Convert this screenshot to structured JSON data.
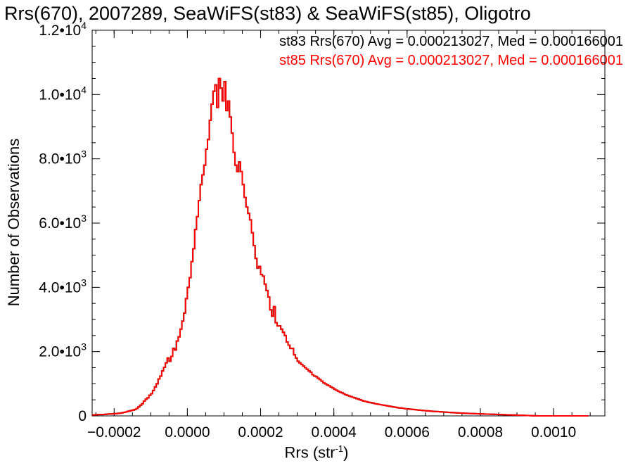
{
  "chart_data": {
    "type": "histogram-step",
    "title": "Rrs(670), 2007289, SeaWiFS(st83) & SeaWiFS(st85), Oligotro",
    "xlabel": "Rrs (str",
    "xlabel_sup": "-1",
    "xlabel_close": ")",
    "ylabel": "Number of Observations",
    "xlim": [
      -0.00026,
      0.00114
    ],
    "ylim": [
      0,
      12000
    ],
    "x_ticks": [
      -0.0002,
      0.0,
      0.0002,
      0.0004,
      0.0006,
      0.0008,
      0.001
    ],
    "x_tick_labels": [
      "−0.0002",
      "0.0000",
      "0.0002",
      "0.0004",
      "0.0006",
      "0.0008",
      "0.0010"
    ],
    "y_ticks": [
      0,
      2000,
      4000,
      6000,
      8000,
      10000,
      12000
    ],
    "y_tick_labels": [
      {
        "mant": "0",
        "exp": ""
      },
      {
        "mant": "2.0•10",
        "exp": "3"
      },
      {
        "mant": "4.0•10",
        "exp": "3"
      },
      {
        "mant": "6.0•10",
        "exp": "3"
      },
      {
        "mant": "8.0•10",
        "exp": "3"
      },
      {
        "mant": "1.0•10",
        "exp": "4"
      },
      {
        "mant": "1.2•10",
        "exp": "4"
      }
    ],
    "bin_width": 5e-06,
    "series": [
      {
        "name": "st83",
        "color": "#000000",
        "stats_text": "st83 Rrs(670) Avg = 0.000213027, Med = 0.000166001",
        "x_start": -0.00026,
        "counts": [
          30,
          30,
          35,
          40,
          45,
          40,
          45,
          50,
          55,
          60,
          60,
          65,
          70,
          70,
          80,
          85,
          95,
          110,
          120,
          140,
          150,
          170,
          180,
          200,
          230,
          280,
          330,
          380,
          460,
          520,
          560,
          640,
          690,
          790,
          900,
          1000,
          1150,
          1240,
          1400,
          1510,
          1650,
          1800,
          1700,
          1850,
          2100,
          2050,
          2330,
          2460,
          2700,
          2950,
          3200,
          3650,
          4000,
          4300,
          4800,
          5200,
          5800,
          6200,
          6700,
          7200,
          7500,
          7800,
          8300,
          8600,
          9200,
          9700,
          10100,
          10300,
          9600,
          10500,
          10200,
          9800,
          10400,
          9500,
          9800,
          9300,
          8800,
          8200,
          7800,
          7600,
          7900,
          7600,
          7200,
          6800,
          6500,
          6300,
          6100,
          5700,
          5300,
          4900,
          4600,
          4650,
          4400,
          4350,
          4100,
          3900,
          3700,
          3300,
          3100,
          3400,
          2900,
          2800,
          2800,
          2700,
          2600,
          2500,
          2300,
          2200,
          2100,
          2100,
          1900,
          1800,
          1700,
          1650,
          1600,
          1550,
          1500,
          1450,
          1400,
          1360,
          1280,
          1240,
          1220,
          1170,
          1130,
          1080,
          1030,
          1000,
          960,
          940,
          900,
          870,
          830,
          800,
          770,
          740,
          720,
          690,
          660,
          640,
          620,
          600,
          580,
          560,
          540,
          520,
          500,
          480,
          460,
          450,
          430,
          420,
          410,
          400,
          380,
          370,
          360,
          350,
          340,
          330,
          320,
          310,
          300,
          290,
          280,
          270,
          260,
          250,
          245,
          240,
          230,
          220,
          215,
          210,
          205,
          200,
          195,
          185,
          180,
          175,
          170,
          165,
          160,
          155,
          150,
          145,
          140,
          138,
          134,
          130,
          126,
          122,
          118,
          114,
          110,
          107,
          104,
          100,
          97,
          94,
          91,
          88,
          85,
          82,
          80,
          77,
          75,
          73,
          70,
          68,
          66,
          64,
          62,
          60,
          58,
          56,
          54,
          52,
          50,
          48,
          46,
          44,
          42,
          40,
          38,
          36,
          34,
          32,
          30,
          28,
          26,
          24,
          22,
          20,
          18,
          16,
          14,
          12,
          10,
          8,
          6,
          4,
          2,
          1,
          1,
          1,
          1,
          1,
          1,
          1,
          1,
          1,
          1,
          1,
          1,
          1,
          1,
          1,
          1,
          1,
          1,
          1,
          1,
          1,
          1,
          1,
          1,
          1,
          1,
          1,
          1
        ]
      },
      {
        "name": "st85",
        "color": "#ff0000",
        "stats_text": "st85 Rrs(670) Avg = 0.000213027, Med = 0.000166001",
        "same_as": "st83"
      }
    ],
    "grid": false,
    "legend": "top-right"
  }
}
